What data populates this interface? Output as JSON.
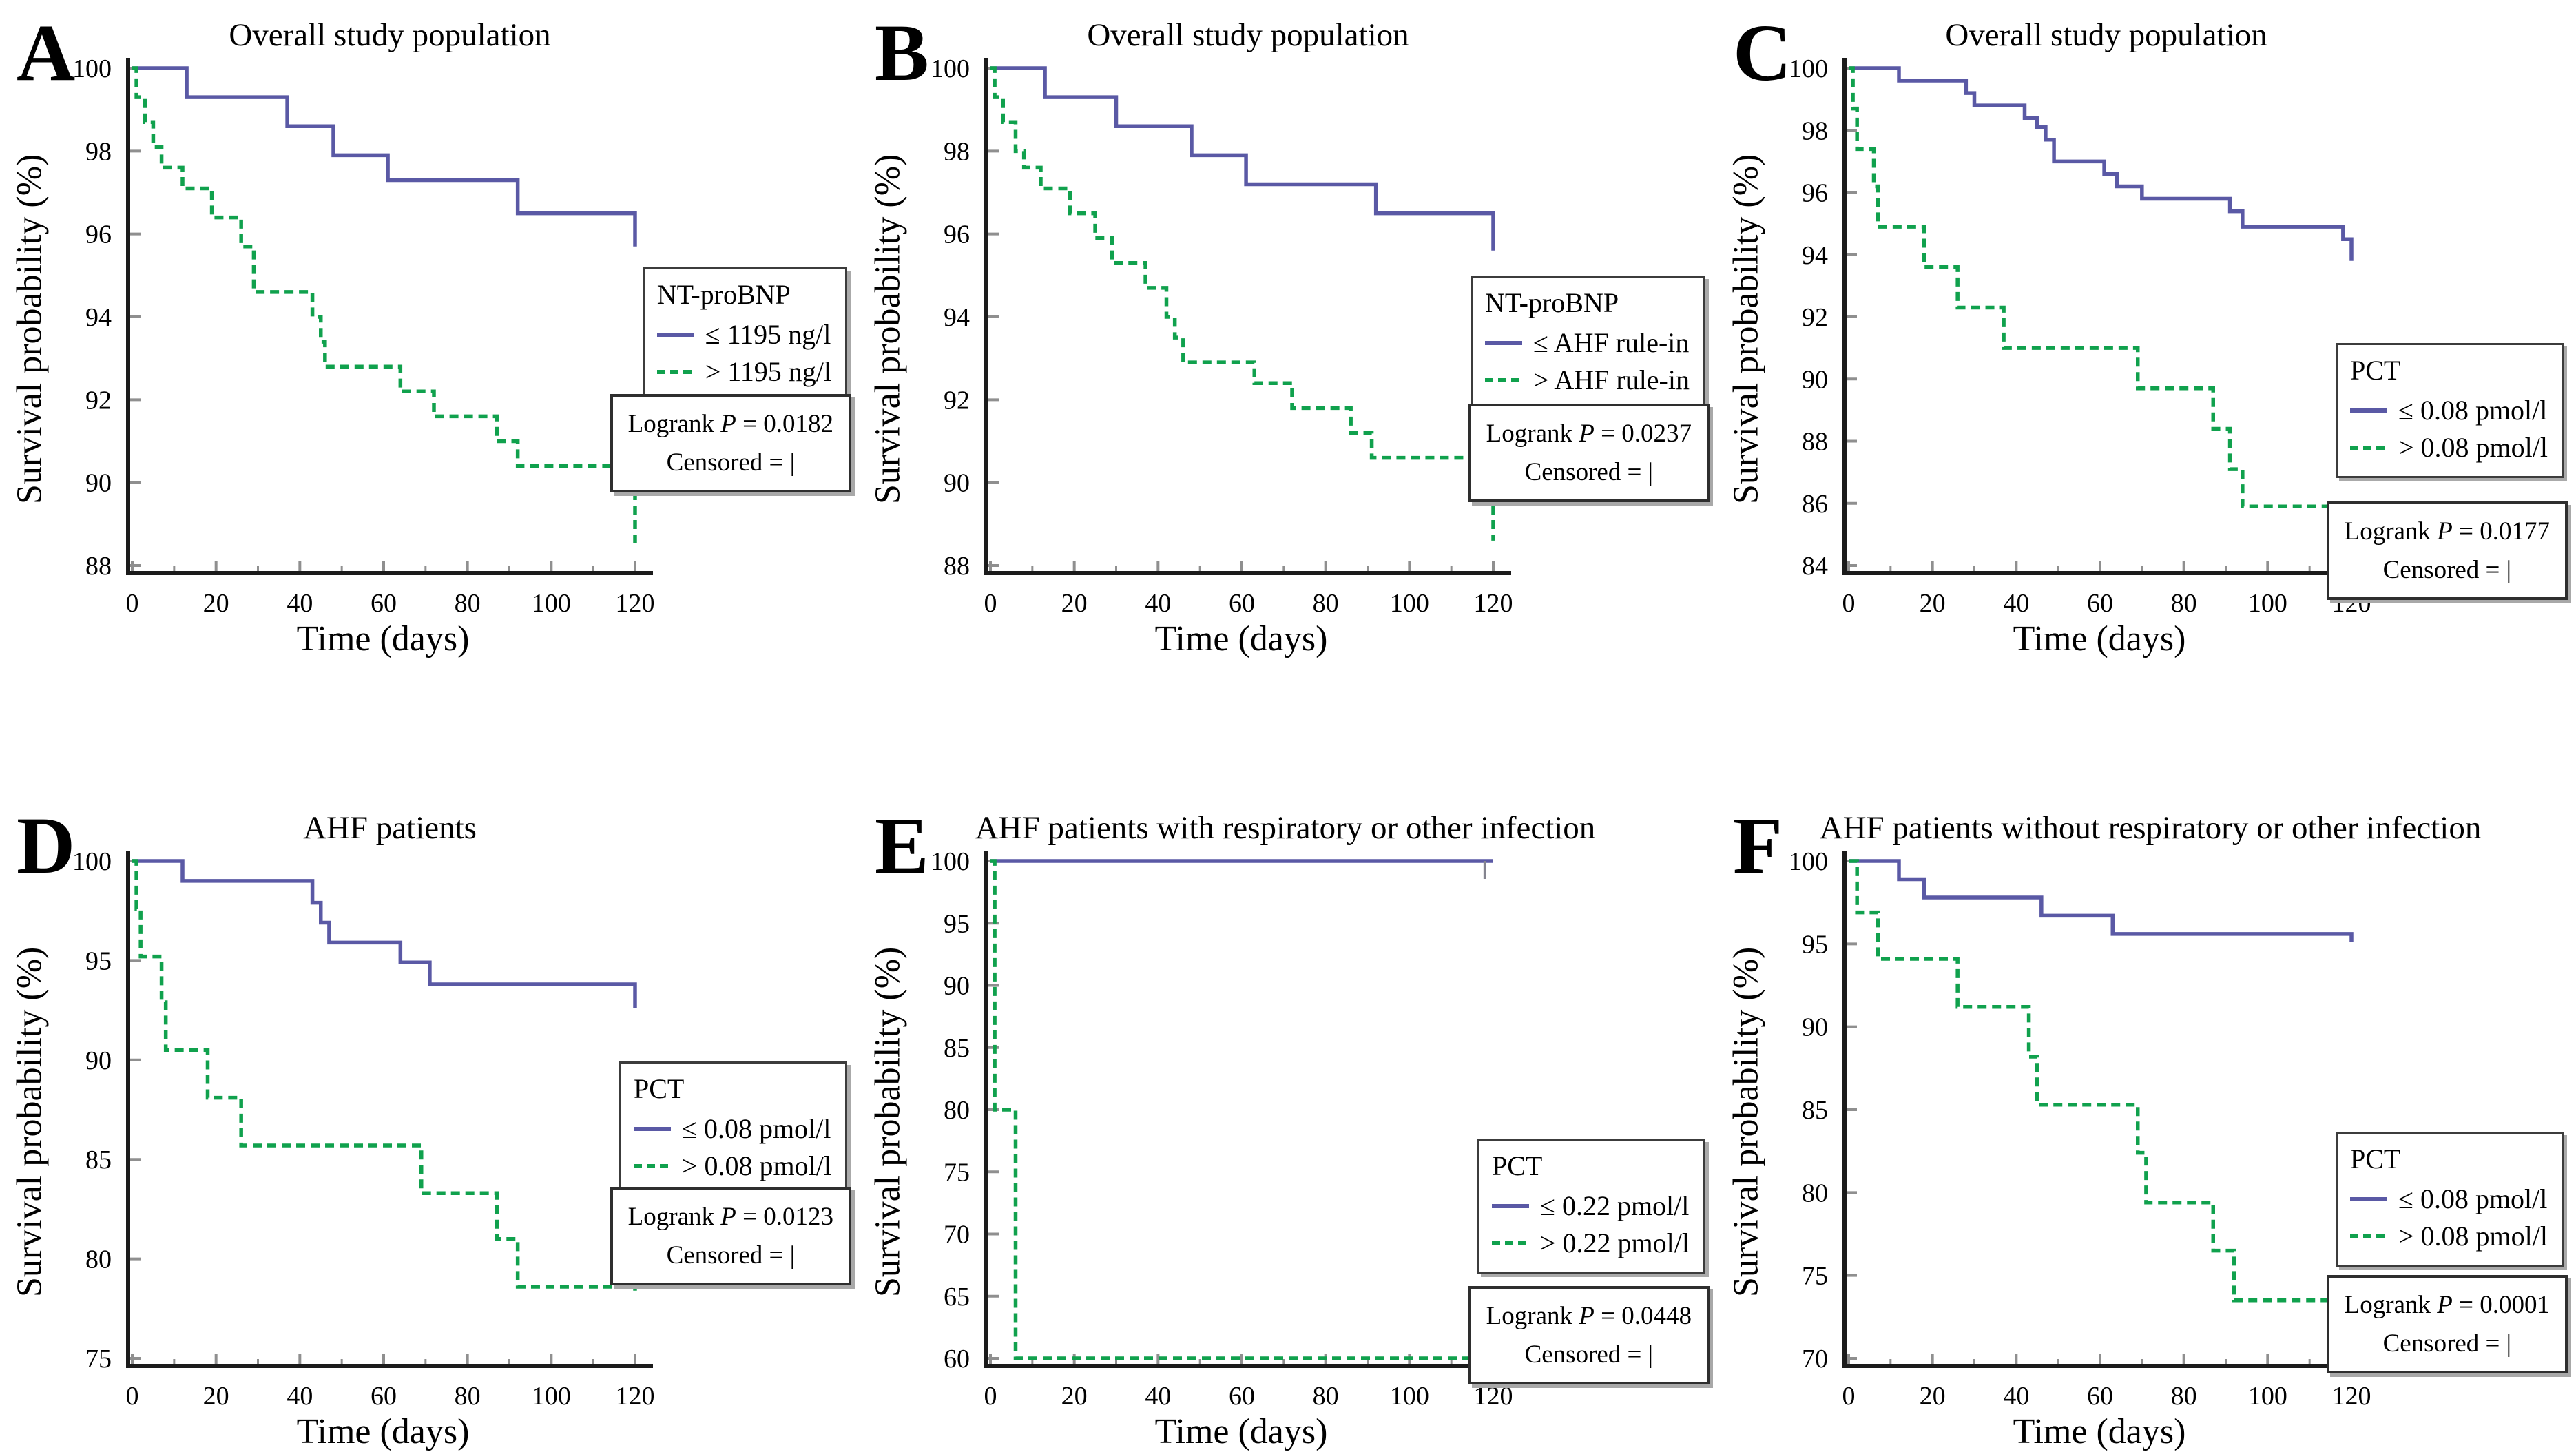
{
  "figure": {
    "background": "#ffffff",
    "rows": 2,
    "cols": 3
  },
  "colors": {
    "blue": "#5a59a5",
    "green": "#10a14d",
    "axis": "#1b1b1b",
    "tick_gray": "#8f8f8f",
    "censor_gray": "#84848f",
    "box_shadow": "#a8a8a8"
  },
  "axes_common": {
    "xlabel": "Time (days)",
    "ylabel": "Survival probability (%)",
    "xlim": [
      0,
      120
    ],
    "xticks": [
      0,
      20,
      40,
      60,
      80,
      100,
      120
    ],
    "grid": false,
    "legend_position": "right"
  },
  "chart_data": [
    {
      "letter": "A",
      "type": "line",
      "subtype": "kaplan-meier-step",
      "title": "Overall study population",
      "xlabel": "Time (days)",
      "ylabel": "Survival probability (%)",
      "xlim": [
        0,
        120
      ],
      "xticks": [
        0,
        20,
        40,
        60,
        80,
        100,
        120
      ],
      "xminor": [
        10,
        30,
        50,
        70,
        90,
        110
      ],
      "ylim": [
        88,
        100
      ],
      "yticks": [
        88,
        90,
        92,
        94,
        96,
        98,
        100
      ],
      "grid": false,
      "legend_position": "right",
      "legend": {
        "header": "NT-proBNP",
        "items": [
          {
            "label": "≤ 1195 ng/l",
            "style": "solid",
            "color": "#5a59a5"
          },
          {
            "label": "> 1195 ng/l",
            "style": "dashed",
            "color": "#10a14d"
          }
        ]
      },
      "stats": {
        "logrank": "Logrank",
        "p": "P",
        "value": "= 0.0182",
        "p_value": 0.0182,
        "censored": "Censored = |"
      },
      "series": [
        {
          "name": "≤ 1195 ng/l",
          "style": "solid",
          "color": "#5a59a5",
          "points": [
            [
              0,
              100
            ],
            [
              13,
              99.3
            ],
            [
              37,
              98.6
            ],
            [
              48,
              97.9
            ],
            [
              61,
              97.3
            ],
            [
              92,
              96.5
            ],
            [
              120,
              95.7
            ]
          ]
        },
        {
          "name": "> 1195 ng/l",
          "style": "dashed",
          "color": "#10a14d",
          "points": [
            [
              0,
              100
            ],
            [
              1,
              99.3
            ],
            [
              3,
              98.7
            ],
            [
              5,
              98.1
            ],
            [
              7,
              97.6
            ],
            [
              12,
              97.1
            ],
            [
              19,
              96.4
            ],
            [
              26,
              95.7
            ],
            [
              29,
              94.6
            ],
            [
              43,
              94.0
            ],
            [
              45,
              93.4
            ],
            [
              46,
              92.8
            ],
            [
              64,
              92.2
            ],
            [
              72,
              91.6
            ],
            [
              87,
              91.0
            ],
            [
              92,
              90.4
            ],
            [
              120,
              88.4
            ]
          ]
        }
      ],
      "censor_marks": []
    },
    {
      "letter": "B",
      "type": "line",
      "subtype": "kaplan-meier-step",
      "title": "Overall study population",
      "xlabel": "Time (days)",
      "ylabel": "Survival probability (%)",
      "xlim": [
        0,
        120
      ],
      "xticks": [
        0,
        20,
        40,
        60,
        80,
        100,
        120
      ],
      "xminor": [
        10,
        30,
        50,
        70,
        90,
        110
      ],
      "ylim": [
        88,
        100
      ],
      "yticks": [
        88,
        90,
        92,
        94,
        96,
        98,
        100
      ],
      "grid": false,
      "legend_position": "right",
      "legend": {
        "header": "NT-proBNP",
        "items": [
          {
            "label": "≤ AHF rule-in",
            "style": "solid",
            "color": "#5a59a5"
          },
          {
            "label": "> AHF rule-in",
            "style": "dashed",
            "color": "#10a14d"
          }
        ]
      },
      "stats": {
        "logrank": "Logrank",
        "p": "P",
        "value": "= 0.0237",
        "p_value": 0.0237,
        "censored": "Censored = |"
      },
      "series": [
        {
          "name": "≤ AHF rule-in",
          "style": "solid",
          "color": "#5a59a5",
          "points": [
            [
              0,
              100
            ],
            [
              13,
              99.3
            ],
            [
              30,
              98.6
            ],
            [
              48,
              97.9
            ],
            [
              61,
              97.2
            ],
            [
              92,
              96.5
            ],
            [
              120,
              95.6
            ]
          ]
        },
        {
          "name": "> AHF rule-in",
          "style": "dashed",
          "color": "#10a14d",
          "points": [
            [
              0,
              100
            ],
            [
              1,
              99.3
            ],
            [
              3,
              98.7
            ],
            [
              6,
              98.0
            ],
            [
              8,
              97.6
            ],
            [
              12,
              97.1
            ],
            [
              19,
              96.5
            ],
            [
              25,
              95.9
            ],
            [
              29,
              95.3
            ],
            [
              37,
              94.7
            ],
            [
              42,
              94.0
            ],
            [
              44,
              93.5
            ],
            [
              46,
              92.9
            ],
            [
              63,
              92.4
            ],
            [
              72,
              91.8
            ],
            [
              86,
              91.2
            ],
            [
              91,
              90.6
            ],
            [
              120,
              88.6
            ]
          ]
        }
      ],
      "censor_marks": []
    },
    {
      "letter": "C",
      "type": "line",
      "subtype": "kaplan-meier-step",
      "title": "Overall study population",
      "xlabel": "Time (days)",
      "ylabel": "Survival probability (%)",
      "xlim": [
        0,
        120
      ],
      "xticks": [
        0,
        20,
        40,
        60,
        80,
        100,
        120
      ],
      "xminor": [
        10,
        30,
        50,
        70,
        90,
        110
      ],
      "ylim": [
        84,
        100
      ],
      "yticks": [
        84,
        86,
        88,
        90,
        92,
        94,
        96,
        98,
        100
      ],
      "grid": false,
      "legend_position": "right",
      "legend": {
        "header": "PCT",
        "items": [
          {
            "label": "≤ 0.08 pmol/l",
            "style": "solid",
            "color": "#5a59a5"
          },
          {
            "label": "> 0.08 pmol/l",
            "style": "dashed",
            "color": "#10a14d"
          }
        ]
      },
      "stats": {
        "logrank": "Logrank",
        "p": "P",
        "value": "= 0.0177",
        "p_value": 0.0177,
        "censored": "Censored = |"
      },
      "series": [
        {
          "name": "≤ 0.08 pmol/l",
          "style": "solid",
          "color": "#5a59a5",
          "points": [
            [
              0,
              100
            ],
            [
              12,
              99.6
            ],
            [
              28,
              99.2
            ],
            [
              30,
              98.8
            ],
            [
              42,
              98.4
            ],
            [
              45,
              98.1
            ],
            [
              47,
              97.7
            ],
            [
              49,
              97.0
            ],
            [
              61,
              96.6
            ],
            [
              64,
              96.2
            ],
            [
              70,
              95.8
            ],
            [
              91,
              95.4
            ],
            [
              94,
              94.9
            ],
            [
              118,
              94.5
            ],
            [
              120,
              93.8
            ]
          ]
        },
        {
          "name": "> 0.08 pmol/l",
          "style": "dashed",
          "color": "#10a14d",
          "points": [
            [
              0,
              100
            ],
            [
              1,
              98.7
            ],
            [
              2,
              97.4
            ],
            [
              6,
              96.2
            ],
            [
              7,
              94.9
            ],
            [
              18,
              93.6
            ],
            [
              26,
              92.3
            ],
            [
              37,
              91.0
            ],
            [
              69,
              89.7
            ],
            [
              87,
              88.4
            ],
            [
              91,
              87.1
            ],
            [
              94,
              85.9
            ],
            [
              120,
              85.7
            ]
          ]
        }
      ],
      "censor_marks": []
    },
    {
      "letter": "D",
      "type": "line",
      "subtype": "kaplan-meier-step",
      "title": "AHF patients",
      "xlabel": "Time (days)",
      "ylabel": "Survival probability (%)",
      "xlim": [
        0,
        120
      ],
      "xticks": [
        0,
        20,
        40,
        60,
        80,
        100,
        120
      ],
      "xminor": [
        10,
        30,
        50,
        70,
        90,
        110
      ],
      "ylim": [
        75,
        100
      ],
      "yticks": [
        75,
        80,
        85,
        90,
        95,
        100
      ],
      "grid": false,
      "legend_position": "right",
      "legend": {
        "header": "PCT",
        "items": [
          {
            "label": "≤ 0.08 pmol/l",
            "style": "solid",
            "color": "#5a59a5"
          },
          {
            "label": "> 0.08 pmol/l",
            "style": "dashed",
            "color": "#10a14d"
          }
        ]
      },
      "stats": {
        "logrank": "Logrank",
        "p": "P",
        "value": "= 0.0123",
        "p_value": 0.0123,
        "censored": "Censored = |"
      },
      "series": [
        {
          "name": "≤ 0.08 pmol/l",
          "style": "solid",
          "color": "#5a59a5",
          "points": [
            [
              0,
              100
            ],
            [
              12,
              99.0
            ],
            [
              43,
              97.9
            ],
            [
              45,
              96.9
            ],
            [
              47,
              95.9
            ],
            [
              64,
              94.9
            ],
            [
              71,
              93.8
            ],
            [
              120,
              92.6
            ]
          ]
        },
        {
          "name": "> 0.08 pmol/l",
          "style": "dashed",
          "color": "#10a14d",
          "points": [
            [
              0,
              100
            ],
            [
              1,
              97.6
            ],
            [
              2,
              95.2
            ],
            [
              7,
              92.9
            ],
            [
              8,
              90.5
            ],
            [
              18,
              88.1
            ],
            [
              26,
              85.7
            ],
            [
              69,
              83.3
            ],
            [
              87,
              81.0
            ],
            [
              92,
              78.6
            ],
            [
              120,
              78.4
            ]
          ]
        }
      ],
      "censor_marks": []
    },
    {
      "letter": "E",
      "type": "line",
      "subtype": "kaplan-meier-step",
      "title": "AHF patients with respiratory or other infection",
      "xlabel": "Time (days)",
      "ylabel": "Survival probability (%)",
      "xlim": [
        0,
        120
      ],
      "xticks": [
        0,
        20,
        40,
        60,
        80,
        100,
        120
      ],
      "xminor": [
        10,
        30,
        50,
        70,
        90,
        110
      ],
      "ylim": [
        60,
        100
      ],
      "yticks": [
        60,
        65,
        70,
        75,
        80,
        85,
        90,
        95,
        100
      ],
      "grid": false,
      "legend_position": "right",
      "legend": {
        "header": "PCT",
        "items": [
          {
            "label": "≤ 0.22 pmol/l",
            "style": "solid",
            "color": "#5a59a5"
          },
          {
            "label": "> 0.22 pmol/l",
            "style": "dashed",
            "color": "#10a14d"
          }
        ]
      },
      "stats": {
        "logrank": "Logrank",
        "p": "P",
        "value": "= 0.0448",
        "p_value": 0.0448,
        "censored": "Censored = |"
      },
      "series": [
        {
          "name": "≤ 0.22 pmol/l",
          "style": "solid",
          "color": "#5a59a5",
          "points": [
            [
              0,
              100
            ],
            [
              120,
              100
            ]
          ]
        },
        {
          "name": "> 0.22 pmol/l",
          "style": "dashed",
          "color": "#10a14d",
          "points": [
            [
              0,
              100
            ],
            [
              1,
              80
            ],
            [
              6,
              60
            ],
            [
              120,
              60
            ]
          ]
        }
      ],
      "censor_marks": [
        {
          "series": 0,
          "x": 118,
          "y": 100
        }
      ]
    },
    {
      "letter": "F",
      "type": "line",
      "subtype": "kaplan-meier-step",
      "title": "AHF patients without respiratory or other infection",
      "xlabel": "Time (days)",
      "ylabel": "Survival probability (%)",
      "xlim": [
        0,
        120
      ],
      "xticks": [
        0,
        20,
        40,
        60,
        80,
        100,
        120
      ],
      "xminor": [
        10,
        30,
        50,
        70,
        90,
        110
      ],
      "ylim": [
        70,
        100
      ],
      "yticks": [
        70,
        75,
        80,
        85,
        90,
        95,
        100
      ],
      "grid": false,
      "legend_position": "right",
      "legend": {
        "header": "PCT",
        "items": [
          {
            "label": "≤ 0.08 pmol/l",
            "style": "solid",
            "color": "#5a59a5"
          },
          {
            "label": "> 0.08 pmol/l",
            "style": "dashed",
            "color": "#10a14d"
          }
        ]
      },
      "stats": {
        "logrank": "Logrank",
        "p": "P",
        "value": "= 0.0001",
        "p_value": 0.0001,
        "censored": "Censored = |"
      },
      "series": [
        {
          "name": "≤ 0.08 pmol/l",
          "style": "solid",
          "color": "#5a59a5",
          "points": [
            [
              0,
              100
            ],
            [
              12,
              98.9
            ],
            [
              18,
              97.8
            ],
            [
              46,
              96.7
            ],
            [
              63,
              95.6
            ],
            [
              120,
              95.1
            ]
          ]
        },
        {
          "name": "> 0.08 pmol/l",
          "style": "dashed",
          "color": "#10a14d",
          "points": [
            [
              0,
              100
            ],
            [
              2,
              96.9
            ],
            [
              7,
              94.1
            ],
            [
              26,
              91.2
            ],
            [
              43,
              88.2
            ],
            [
              45,
              85.3
            ],
            [
              69,
              82.4
            ],
            [
              71,
              79.4
            ],
            [
              87,
              76.5
            ],
            [
              92,
              73.5
            ],
            [
              120,
              70.5
            ]
          ]
        }
      ],
      "censor_marks": []
    }
  ]
}
